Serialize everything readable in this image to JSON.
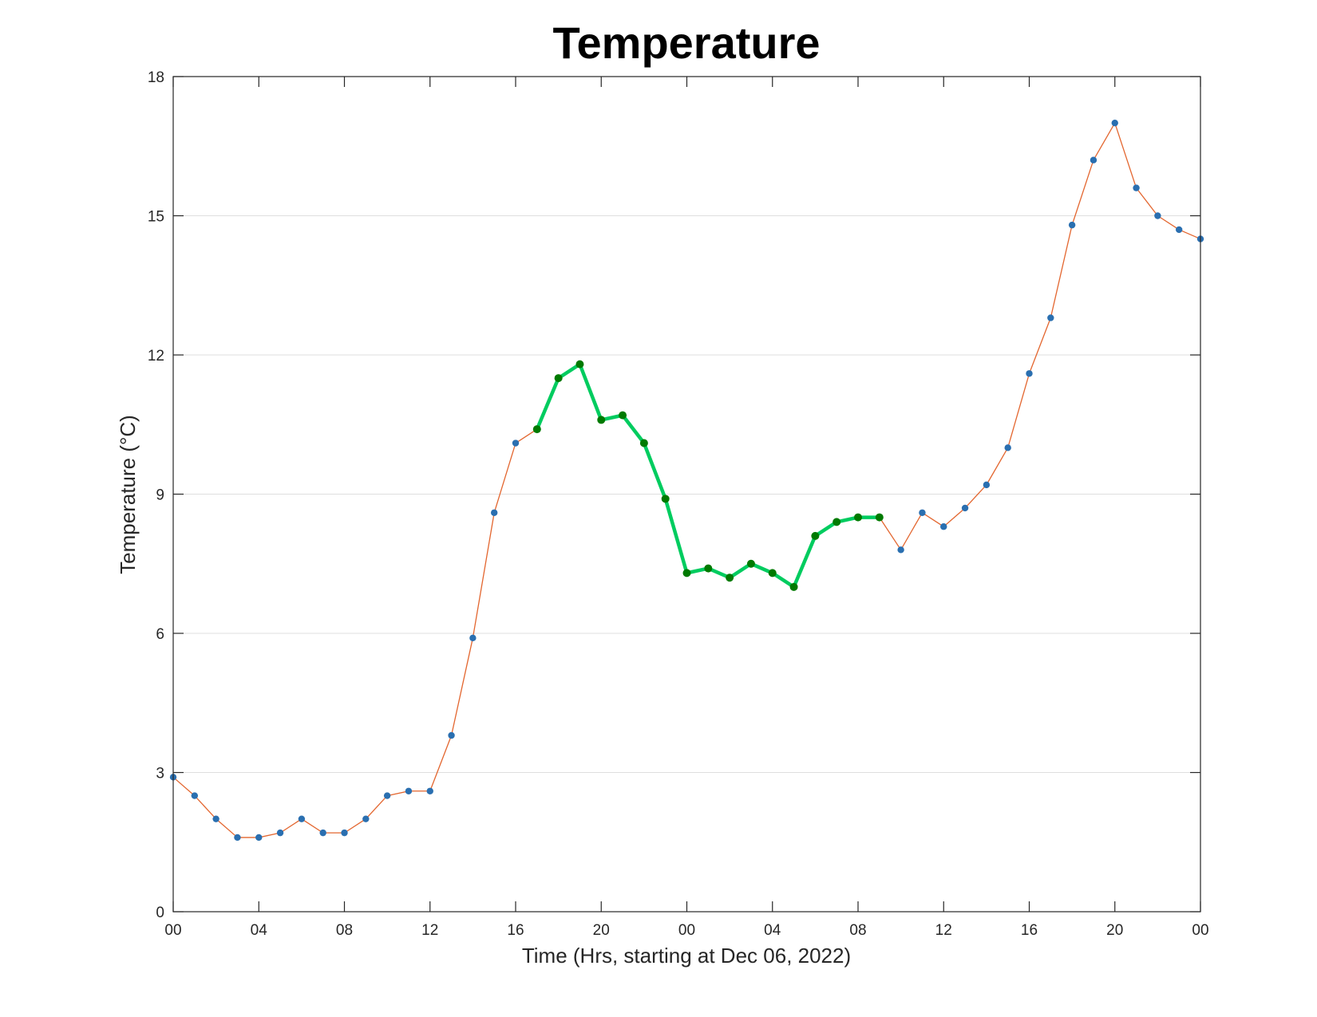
{
  "chart_data": {
    "type": "line",
    "title": "Temperature",
    "xlabel": "Time (Hrs, starting at Dec 06, 2022)",
    "ylabel": "Temperature (°C)",
    "xlim": [
      0,
      48
    ],
    "ylim": [
      0,
      18
    ],
    "xticks": [
      0,
      4,
      8,
      12,
      16,
      20,
      24,
      28,
      32,
      36,
      40,
      44,
      48
    ],
    "xticklabels": [
      "00",
      "04",
      "08",
      "12",
      "16",
      "20",
      "00",
      "04",
      "08",
      "12",
      "16",
      "20",
      "00"
    ],
    "yticks": [
      0,
      3,
      6,
      9,
      12,
      15,
      18
    ],
    "yticklabels": [
      "0",
      "3",
      "6",
      "9",
      "12",
      "15",
      "18"
    ],
    "grid": "y",
    "legend": "none",
    "x": [
      0,
      1,
      2,
      3,
      4,
      5,
      6,
      7,
      8,
      9,
      10,
      11,
      12,
      13,
      14,
      15,
      16,
      17,
      18,
      19,
      20,
      21,
      22,
      23,
      24,
      25,
      26,
      27,
      28,
      29,
      30,
      31,
      32,
      33,
      34,
      35,
      36,
      37,
      38,
      39,
      40,
      41,
      42,
      43,
      44,
      45,
      46,
      47,
      48
    ],
    "series": [
      {
        "values": [
          2.9,
          2.5,
          2.0,
          1.6,
          1.6,
          1.7,
          2.0,
          1.7,
          1.7,
          2.0,
          2.5,
          2.6,
          2.6,
          3.8,
          5.9,
          8.6,
          10.1,
          10.4,
          11.5,
          11.8,
          10.6,
          10.7,
          10.1,
          8.9,
          7.3,
          7.4,
          7.2,
          7.5,
          7.3,
          7.0,
          8.1,
          8.4,
          8.5,
          8.5,
          7.8,
          8.6,
          8.3,
          8.7,
          9.2,
          10.0,
          11.6,
          12.8,
          14.8,
          16.2,
          17.0,
          15.6,
          15.0,
          14.7,
          14.5
        ],
        "color": "#e3662f",
        "marker_color": "#2a6fb0"
      }
    ],
    "highlight_segments": [
      {
        "x_from": 17,
        "x_to": 24,
        "color": "#00cc5f",
        "marker_color": "#007a00"
      },
      {
        "x_from": 24,
        "x_to": 29,
        "color": "#00cc5f",
        "marker_color": "#007a00"
      },
      {
        "x_from": 29,
        "x_to": 33,
        "color": "#00cc5f",
        "marker_color": "#007a00"
      }
    ]
  }
}
